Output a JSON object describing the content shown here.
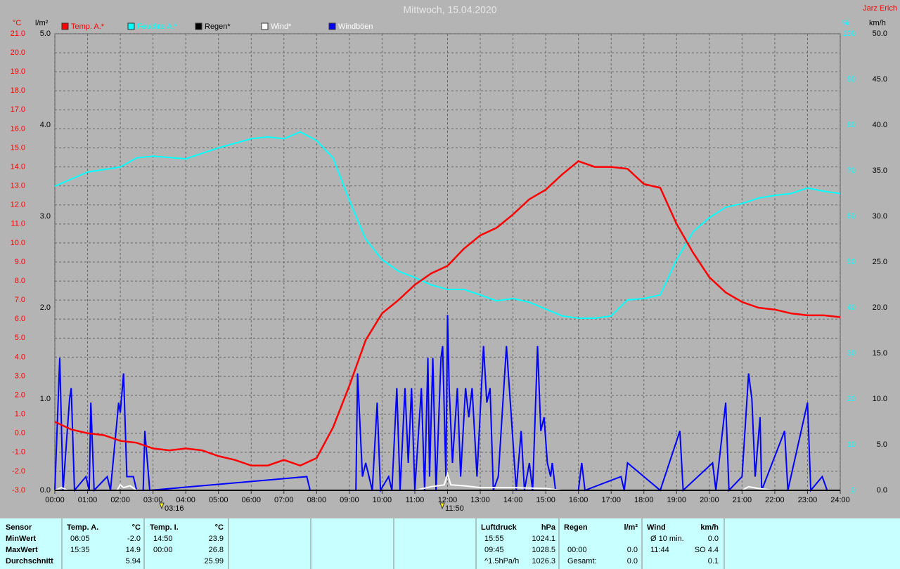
{
  "chart_data": {
    "type": "line",
    "title": "Mittwoch, 15.04.2020",
    "author": "Jarz Erich",
    "axis_units": {
      "y": "°C",
      "y4": "l/m²",
      "y2": "%",
      "y3": "km/h"
    },
    "annotations": [
      "03:16",
      "11:50"
    ],
    "grid": true,
    "xlim": [
      0,
      24
    ],
    "xticks": [
      {
        "value": 0,
        "label": "00:00"
      },
      {
        "value": 1,
        "label": "01:00"
      },
      {
        "value": 2,
        "label": "02:00"
      },
      {
        "value": 3,
        "label": "03:00"
      },
      {
        "value": 4,
        "label": "04:00"
      },
      {
        "value": 5,
        "label": "05:00"
      },
      {
        "value": 6,
        "label": "06:00"
      },
      {
        "value": 7,
        "label": "07:00"
      },
      {
        "value": 8,
        "label": "08:00"
      },
      {
        "value": 9,
        "label": "09:00"
      },
      {
        "value": 10,
        "label": "10:00"
      },
      {
        "value": 11,
        "label": "11:00"
      },
      {
        "value": 12,
        "label": "12:00"
      },
      {
        "value": 13,
        "label": "13:00"
      },
      {
        "value": 14,
        "label": "14:00"
      },
      {
        "value": 15,
        "label": "15:00"
      },
      {
        "value": 16,
        "label": "16:00"
      },
      {
        "value": 17,
        "label": "17:00"
      },
      {
        "value": 18,
        "label": "18:00"
      },
      {
        "value": 19,
        "label": "19:00"
      },
      {
        "value": 20,
        "label": "20:00"
      },
      {
        "value": 21,
        "label": "21:00"
      },
      {
        "value": 22,
        "label": "22:00"
      },
      {
        "value": 23,
        "label": "23:00"
      },
      {
        "value": 24,
        "label": "24:00"
      }
    ],
    "ylim": [
      -3,
      21
    ],
    "yticks": [
      {
        "value": -3,
        "label": "-3.0"
      },
      {
        "value": -2,
        "label": "-2.0"
      },
      {
        "value": -1,
        "label": "-1.0"
      },
      {
        "value": 0,
        "label": "0.0"
      },
      {
        "value": 1,
        "label": "1.0"
      },
      {
        "value": 2,
        "label": "2.0"
      },
      {
        "value": 3,
        "label": "3.0"
      },
      {
        "value": 4,
        "label": "4.0"
      },
      {
        "value": 5,
        "label": "5.0"
      },
      {
        "value": 6,
        "label": "6.0"
      },
      {
        "value": 7,
        "label": "7.0"
      },
      {
        "value": 8,
        "label": "8.0"
      },
      {
        "value": 9,
        "label": "9.0"
      },
      {
        "value": 10,
        "label": "10.0"
      },
      {
        "value": 11,
        "label": "11.0"
      },
      {
        "value": 12,
        "label": "12.0"
      },
      {
        "value": 13,
        "label": "13.0"
      },
      {
        "value": 14,
        "label": "14.0"
      },
      {
        "value": 15,
        "label": "15.0"
      },
      {
        "value": 16,
        "label": "16.0"
      },
      {
        "value": 17,
        "label": "17.0"
      },
      {
        "value": 18,
        "label": "18.0"
      },
      {
        "value": 19,
        "label": "19.0"
      },
      {
        "value": 20,
        "label": "20.0"
      },
      {
        "value": 21,
        "label": "21.0"
      }
    ],
    "y4lim": [
      0,
      5
    ],
    "y4ticks": [
      {
        "value": 0,
        "label": "0.0"
      },
      {
        "value": 1,
        "label": "1.0"
      },
      {
        "value": 2,
        "label": "2.0"
      },
      {
        "value": 3,
        "label": "3.0"
      },
      {
        "value": 4,
        "label": "4.0"
      },
      {
        "value": 5,
        "label": "5.0"
      }
    ],
    "y2lim": [
      0,
      100
    ],
    "y2ticks": [
      0,
      10,
      20,
      30,
      40,
      50,
      60,
      70,
      80,
      90,
      100
    ],
    "y3lim": [
      0,
      50
    ],
    "y3ticks": [
      {
        "value": 0,
        "label": "0.0"
      },
      {
        "value": 5,
        "label": "5.0"
      },
      {
        "value": 10,
        "label": "10.0"
      },
      {
        "value": 15,
        "label": "15.0"
      },
      {
        "value": 20,
        "label": "20.0"
      },
      {
        "value": 25,
        "label": "25.0"
      },
      {
        "value": 30,
        "label": "30.0"
      },
      {
        "value": 35,
        "label": "35.0"
      },
      {
        "value": 40,
        "label": "40.0"
      },
      {
        "value": 45,
        "label": "45.0"
      },
      {
        "value": 50,
        "label": "50.0"
      }
    ],
    "series": [
      {
        "name": "Temp. A.*",
        "color": "#ff0000",
        "axis": "y",
        "x": [
          0,
          0.5,
          1,
          1.5,
          2,
          2.5,
          3,
          3.5,
          4,
          4.5,
          5,
          5.5,
          6,
          6.5,
          7,
          7.5,
          8,
          8.5,
          9,
          9.5,
          10,
          10.5,
          11,
          11.5,
          12,
          12.5,
          13,
          13.5,
          14,
          14.5,
          15,
          15.5,
          16,
          16.5,
          17,
          17.5,
          18,
          18.5,
          19,
          19.5,
          20,
          20.5,
          21,
          21.5,
          22,
          22.5,
          23,
          23.5,
          24
        ],
        "values": [
          0.6,
          0.2,
          0,
          -0.1,
          -0.4,
          -0.5,
          -0.8,
          -0.9,
          -0.8,
          -0.9,
          -1.2,
          -1.4,
          -1.7,
          -1.7,
          -1.4,
          -1.7,
          -1.3,
          0.3,
          2.5,
          4.9,
          6.3,
          7,
          7.8,
          8.4,
          8.8,
          9.7,
          10.4,
          10.8,
          11.5,
          12.3,
          12.8,
          13.6,
          14.3,
          14,
          14,
          13.9,
          13.1,
          12.9,
          11,
          9.5,
          8.2,
          7.4,
          6.9,
          6.6,
          6.5,
          6.3,
          6.2,
          6.2,
          6.1
        ]
      },
      {
        "name": "Feuchte A.*",
        "color": "#00ffff",
        "axis": "y2",
        "x": [
          0,
          1,
          2,
          2.5,
          3,
          4,
          5,
          6,
          6.5,
          7,
          7.5,
          8,
          8.5,
          9,
          9.5,
          10,
          10.5,
          11,
          11.5,
          12,
          12.5,
          13,
          13.5,
          14,
          14.5,
          15,
          15.5,
          16,
          16.5,
          17,
          17.5,
          18,
          18.5,
          19,
          19.5,
          20,
          20.5,
          21,
          21.5,
          22,
          22.5,
          23,
          23.5,
          24
        ],
        "values": [
          66.6,
          69.7,
          70.8,
          72.8,
          73.2,
          72.6,
          75,
          77,
          77.4,
          77,
          78.5,
          76.6,
          72.8,
          63.5,
          55,
          50.5,
          48,
          46.6,
          45,
          44,
          44,
          42.8,
          41.5,
          42,
          41.2,
          39.7,
          38.2,
          37.7,
          37.7,
          38.2,
          41.7,
          42,
          42.8,
          50.5,
          56.6,
          59.7,
          62,
          62.8,
          64,
          64.6,
          65,
          66.2,
          65.5,
          65
        ]
      },
      {
        "name": "Regen*",
        "color": "#000000",
        "axis": "y4",
        "x": [
          0,
          24
        ],
        "values": [
          0,
          0
        ]
      },
      {
        "name": "Wind*",
        "color": "#ffffff",
        "axis": "y3",
        "x": [
          0,
          0.2,
          0.4,
          1.9,
          2,
          2.1,
          2.3,
          2.5,
          11,
          11.5,
          11.9,
          12,
          12.1,
          12.5,
          13,
          14,
          15,
          15.5,
          21,
          21.2,
          21.5,
          22
        ],
        "values": [
          0,
          0.3,
          0,
          0,
          0.6,
          0.3,
          0.5,
          0,
          0,
          0.4,
          0.6,
          1.8,
          0.6,
          0.5,
          0.3,
          0.3,
          0.2,
          0,
          0,
          0.4,
          0.2,
          0
        ]
      },
      {
        "name": "Windböen",
        "color": "#0000ff",
        "axis": "y3",
        "x": [
          0,
          0.15,
          0.25,
          0.45,
          0.5,
          0.6,
          0.95,
          1.05,
          1.1,
          1.2,
          1.6,
          1.7,
          1.95,
          2,
          2.1,
          2.2,
          2.4,
          2.5,
          2.7,
          2.75,
          2.9,
          7.7,
          7.8,
          9.2,
          9.25,
          9.4,
          9.5,
          9.7,
          9.85,
          9.95,
          10.2,
          10.3,
          10.45,
          10.55,
          10.7,
          10.8,
          10.9,
          11,
          11.2,
          11.3,
          11.4,
          11.45,
          11.55,
          11.65,
          11.8,
          11.85,
          11.95,
          12,
          12.05,
          12.15,
          12.3,
          12.4,
          12.55,
          12.65,
          12.75,
          12.9,
          13.1,
          13.2,
          13.3,
          13.4,
          13.55,
          13.8,
          13.95,
          14.1,
          14.25,
          14.35,
          14.5,
          14.6,
          14.75,
          14.85,
          14.95,
          15.05,
          15.15,
          15.2,
          15.3,
          16,
          16.1,
          16.2,
          17.3,
          17.4,
          17.5,
          18.5,
          19.1,
          19.2,
          20.1,
          20.2,
          20.5,
          20.6,
          21,
          21.2,
          21.3,
          21.4,
          21.55,
          21.6,
          22.3,
          22.4,
          23,
          23.1,
          23.45,
          23.6
        ],
        "values": [
          0,
          14.5,
          0,
          10,
          11.2,
          0,
          1.5,
          0,
          9.6,
          0,
          1.5,
          0,
          9.6,
          8.5,
          12.8,
          1.5,
          1.5,
          0,
          0,
          6.5,
          0,
          1.5,
          0,
          0,
          12.8,
          1.5,
          3,
          0,
          9.6,
          0,
          1.5,
          0,
          11.2,
          0,
          11.2,
          3,
          11.2,
          0,
          11.2,
          0,
          14.5,
          1.5,
          14.5,
          0,
          14.5,
          15.8,
          1.5,
          19.2,
          11.2,
          3,
          11.2,
          1.5,
          11.2,
          8,
          11.2,
          1.5,
          15.8,
          9.6,
          11.2,
          0,
          1.5,
          15.8,
          8,
          0,
          6.5,
          0,
          3,
          0,
          15.8,
          6.5,
          8,
          3,
          1.5,
          3,
          0,
          0,
          3,
          0,
          1.5,
          0,
          3,
          0,
          6.5,
          0,
          3,
          0,
          9.6,
          0,
          1.5,
          12.8,
          10,
          1.5,
          8,
          0,
          6.5,
          0,
          9.6,
          0,
          1.5,
          0
        ]
      }
    ]
  },
  "table": {
    "row_labels": [
      "Sensor",
      "MinWert",
      "MaxWert",
      "Durchschnitt"
    ],
    "groups": [
      {
        "name": "Temp. A.",
        "unit": "°C",
        "cells": [
          [
            "06:05",
            "-2.0"
          ],
          [
            "15:35",
            "14.9"
          ],
          [
            null,
            "5.94"
          ]
        ]
      },
      {
        "name": "Temp. I.",
        "unit": "°C",
        "cells": [
          [
            "14:50",
            "23.9"
          ],
          [
            "00:00",
            "26.8"
          ],
          [
            null,
            "25.99"
          ]
        ]
      },
      {
        "name": "Luftdruck",
        "unit": "hPa",
        "cells": [
          [
            "15:55",
            "1024.1"
          ],
          [
            "09:45",
            "1028.5"
          ],
          [
            "^1.5hPa/h",
            "1026.3"
          ]
        ]
      },
      {
        "name": "Regen",
        "unit": "l/m²",
        "cells": [
          [
            null,
            null
          ],
          [
            "00:00",
            "0.0"
          ],
          [
            "Gesamt:",
            "0.0"
          ]
        ]
      },
      {
        "name": "Wind",
        "unit": "km/h",
        "cells": [
          [
            "Ø 10 min.",
            "0.0"
          ],
          [
            "11:44",
            "SO 4.4"
          ],
          [
            null,
            "0.1"
          ]
        ]
      }
    ]
  }
}
